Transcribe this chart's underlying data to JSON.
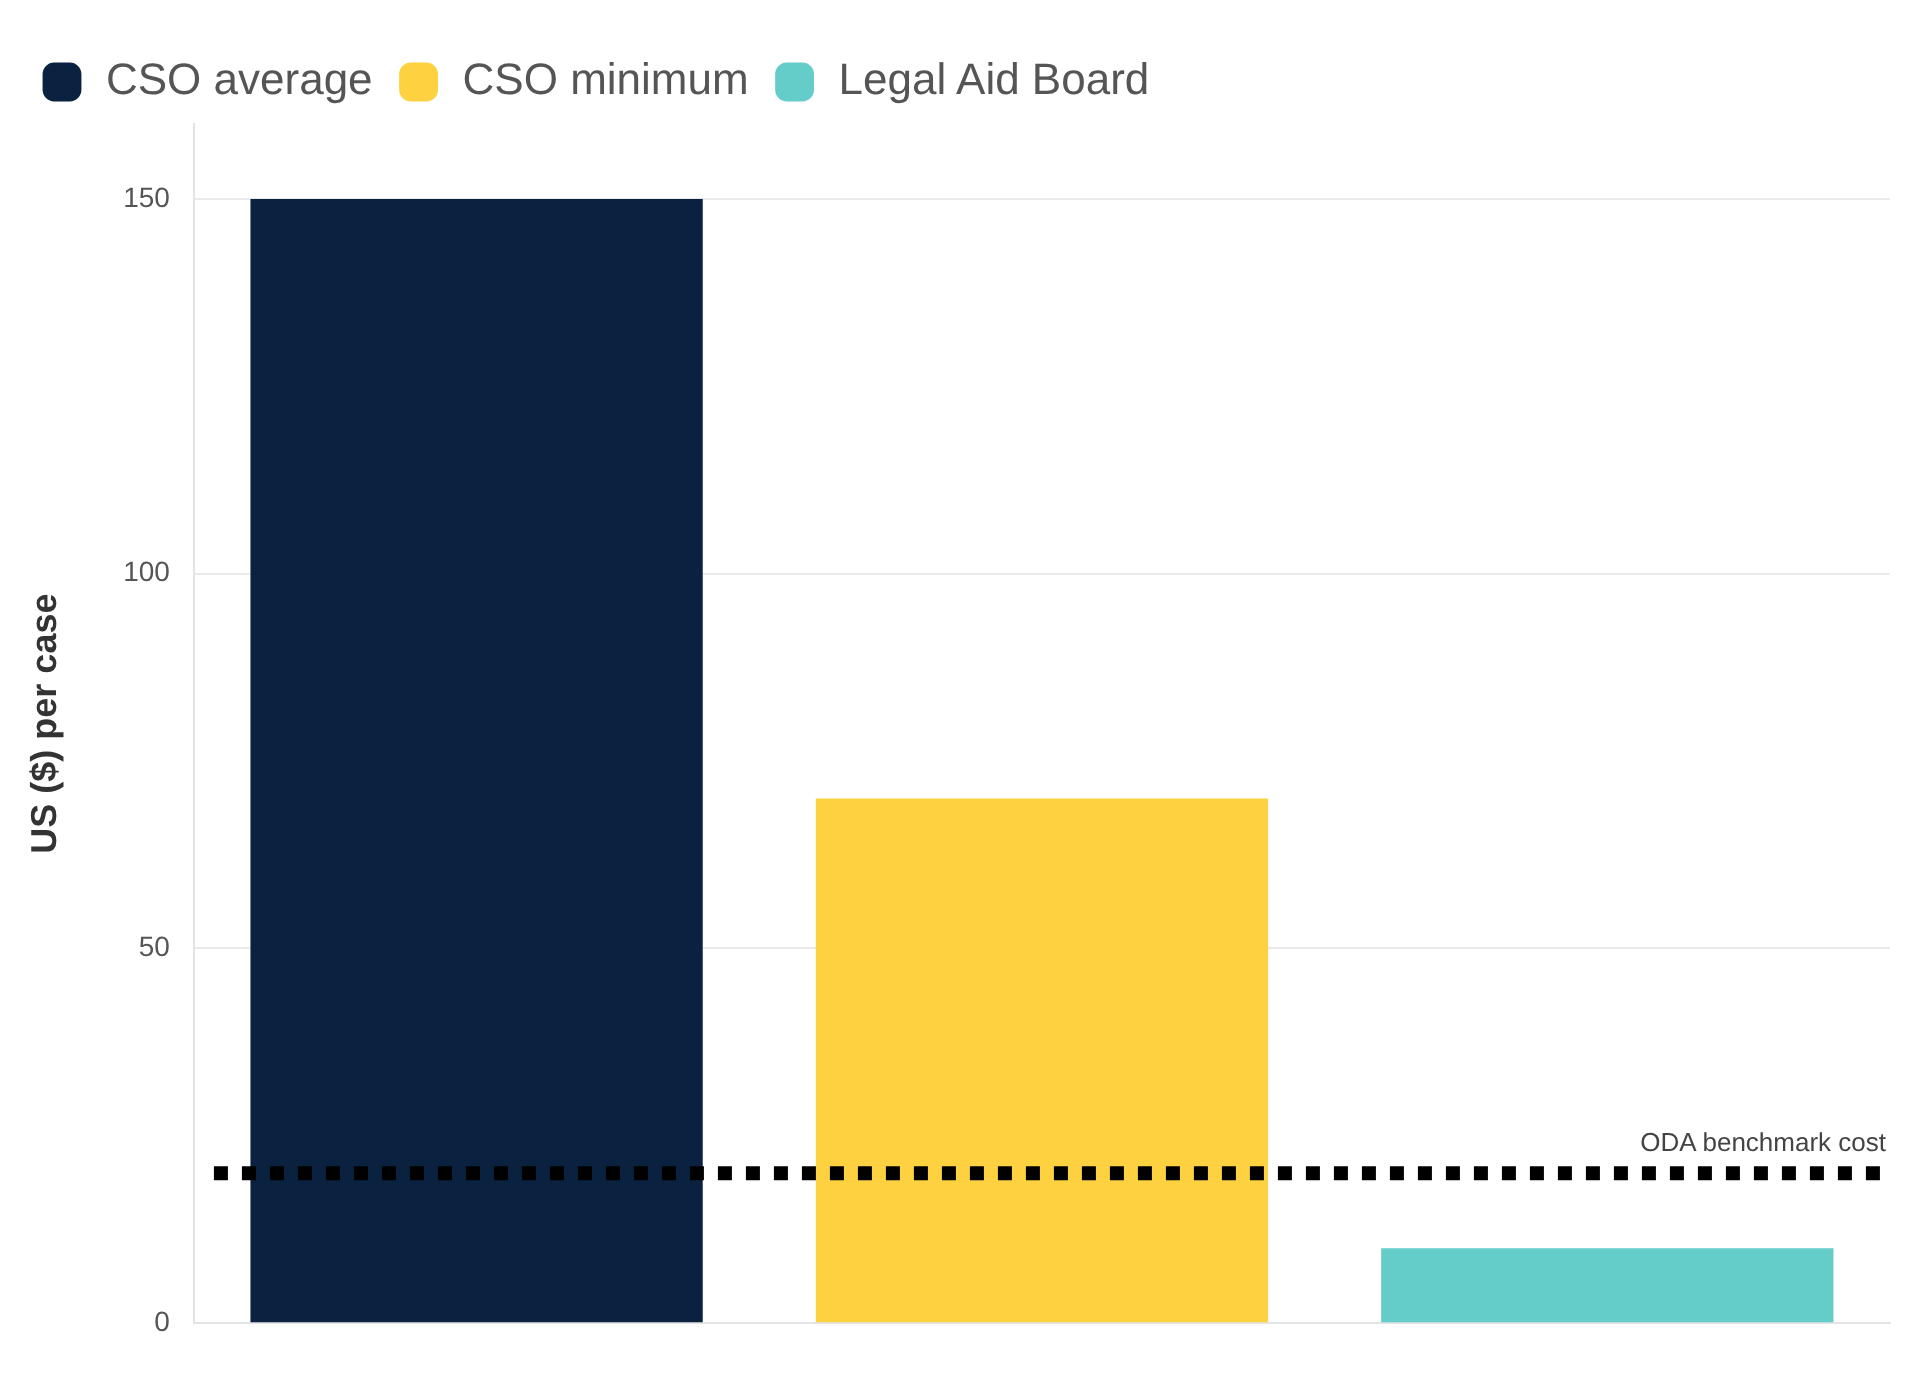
{
  "chart_data": {
    "type": "bar",
    "ylabel": "US ($) per case",
    "categories": [
      null,
      null,
      null
    ],
    "series": [
      {
        "name": "CSO average",
        "color": "#0a2240",
        "values": [
          150,
          null,
          null
        ]
      },
      {
        "name": "CSO minimum",
        "color": "#fdd13f",
        "values": [
          null,
          70,
          null
        ]
      },
      {
        "name": "Legal Aid Board",
        "color": "#64ccc9",
        "values": [
          null,
          null,
          10
        ]
      }
    ],
    "ylim": [
      0,
      160
    ],
    "yticks": [
      0,
      50,
      100,
      150
    ],
    "grid": "y",
    "legend": "top left",
    "tick_labels": "y",
    "ref_lines": [
      {
        "axis": "y",
        "value": 20,
        "label": "ODA benchmark cost",
        "color": "#000000",
        "line_style": "dotted"
      }
    ]
  }
}
